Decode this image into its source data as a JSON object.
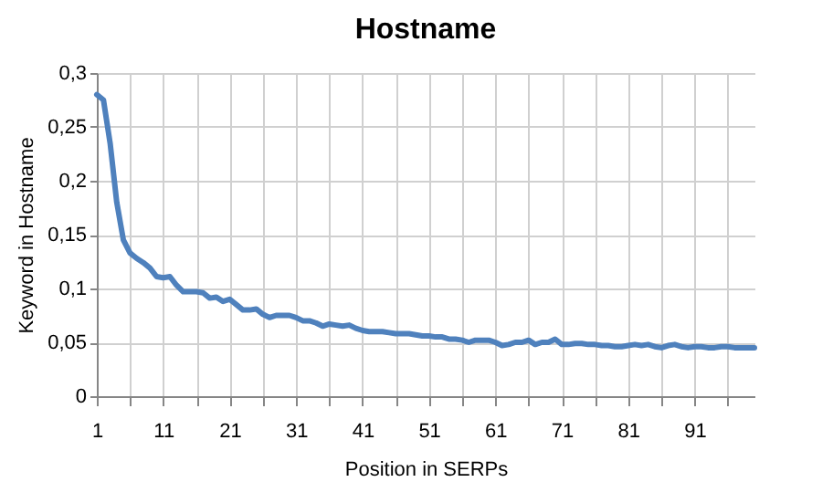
{
  "chart_data": {
    "type": "line",
    "title": "Hostname",
    "xlabel": "Position in SERPs",
    "ylabel": "Keyword in Hostname",
    "x": [
      1,
      2,
      3,
      4,
      5,
      6,
      7,
      8,
      9,
      10,
      11,
      12,
      13,
      14,
      15,
      16,
      17,
      18,
      19,
      20,
      21,
      22,
      23,
      24,
      25,
      26,
      27,
      28,
      29,
      30,
      31,
      32,
      33,
      34,
      35,
      36,
      37,
      38,
      39,
      40,
      41,
      42,
      43,
      44,
      45,
      46,
      47,
      48,
      49,
      50,
      51,
      52,
      53,
      54,
      55,
      56,
      57,
      58,
      59,
      60,
      61,
      62,
      63,
      64,
      65,
      66,
      67,
      68,
      69,
      70,
      71,
      72,
      73,
      74,
      75,
      76,
      77,
      78,
      79,
      80,
      81,
      82,
      83,
      84,
      85,
      86,
      87,
      88,
      89,
      90,
      91,
      92,
      93,
      94,
      95,
      96,
      97,
      98,
      99,
      100
    ],
    "series": [
      {
        "color": "#4f81bd",
        "values": [
          0.28,
          0.275,
          0.235,
          0.18,
          0.145,
          0.133,
          0.128,
          0.124,
          0.119,
          0.111,
          0.11,
          0.111,
          0.103,
          0.097,
          0.097,
          0.097,
          0.096,
          0.091,
          0.092,
          0.088,
          0.09,
          0.085,
          0.08,
          0.08,
          0.081,
          0.076,
          0.073,
          0.075,
          0.075,
          0.075,
          0.073,
          0.07,
          0.07,
          0.068,
          0.065,
          0.067,
          0.066,
          0.065,
          0.066,
          0.063,
          0.061,
          0.06,
          0.06,
          0.06,
          0.059,
          0.058,
          0.058,
          0.058,
          0.057,
          0.056,
          0.056,
          0.055,
          0.055,
          0.053,
          0.053,
          0.052,
          0.05,
          0.052,
          0.052,
          0.052,
          0.05,
          0.047,
          0.048,
          0.05,
          0.05,
          0.052,
          0.048,
          0.05,
          0.05,
          0.053,
          0.048,
          0.048,
          0.049,
          0.049,
          0.048,
          0.048,
          0.047,
          0.047,
          0.046,
          0.046,
          0.047,
          0.048,
          0.047,
          0.048,
          0.046,
          0.045,
          0.047,
          0.048,
          0.046,
          0.045,
          0.046,
          0.046,
          0.045,
          0.045,
          0.046,
          0.046,
          0.045,
          0.045,
          0.045,
          0.045
        ]
      }
    ],
    "xlim": [
      1,
      100
    ],
    "xticks": [
      1,
      {
        "value": 6,
        "label": null
      },
      11,
      {
        "value": 16,
        "label": null
      },
      21,
      {
        "value": 26,
        "label": null
      },
      31,
      {
        "value": 36,
        "label": null
      },
      41,
      {
        "value": 46,
        "label": null
      },
      51,
      {
        "value": 56,
        "label": null
      },
      61,
      {
        "value": 66,
        "label": null
      },
      71,
      {
        "value": 76,
        "label": null
      },
      81,
      {
        "value": 86,
        "label": null
      },
      91,
      {
        "value": 96,
        "label": null
      }
    ],
    "ylim": [
      0,
      0.3
    ],
    "yticks": [
      {
        "value": 0,
        "label": "0"
      },
      {
        "value": 0.05,
        "label": "0,05"
      },
      {
        "value": 0.1,
        "label": "0,1"
      },
      {
        "value": 0.15,
        "label": "0,15"
      },
      {
        "value": 0.2,
        "label": "0,2"
      },
      {
        "value": 0.25,
        "label": "0,25"
      },
      {
        "value": 0.3,
        "label": "0,3"
      }
    ],
    "grid": true,
    "legend": false,
    "marker": "none",
    "line_style": "solid"
  }
}
